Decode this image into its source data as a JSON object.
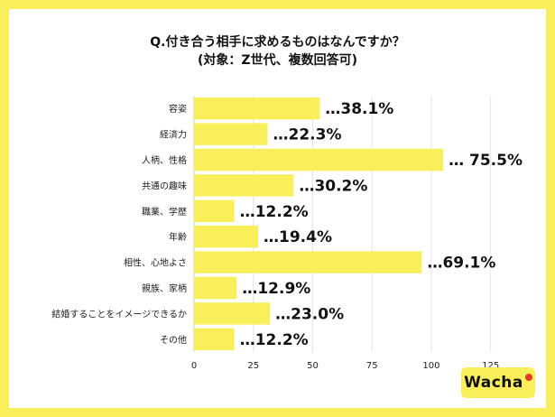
{
  "header": {
    "title_line1": "Q.付き合う相手に求めるものはなんですか？",
    "title_line2": "(対象：Z世代、複数回答可)"
  },
  "brand": {
    "logo_text": "Wacha"
  },
  "colors": {
    "background": "#f8ef5b",
    "bar": "#f8ef5b",
    "grid": "#e4e4e4"
  },
  "chart_data": {
    "type": "bar",
    "orientation": "horizontal",
    "title": "Q.付き合う相手に求めるものはなんですか？",
    "subtitle": "(対象：Z世代、複数回答可)",
    "categories": [
      "容姿",
      "経済力",
      "人柄、性格",
      "共通の趣味",
      "職業、学歴",
      "年齢",
      "相性、心地よさ",
      "親族、家柄",
      "結婚することをイメージできるか",
      "その他"
    ],
    "values": [
      38.1,
      22.3,
      75.5,
      30.2,
      12.2,
      19.4,
      69.1,
      12.9,
      23.0,
      12.2
    ],
    "bar_values": [
      53,
      31,
      105,
      42,
      17,
      27,
      96,
      18,
      32,
      17
    ],
    "data_labels": [
      "…38.1%",
      "…22.3%",
      "… 75.5%",
      "…30.2%",
      "…12.2%",
      "…19.4%",
      "…69.1%",
      "…12.9%",
      "…23.0%",
      "…12.2%"
    ],
    "x_ticks": [
      "0",
      "25",
      "50",
      "75",
      "100",
      "125"
    ],
    "xlim": [
      0,
      135
    ],
    "grid": true,
    "legend": "none"
  }
}
